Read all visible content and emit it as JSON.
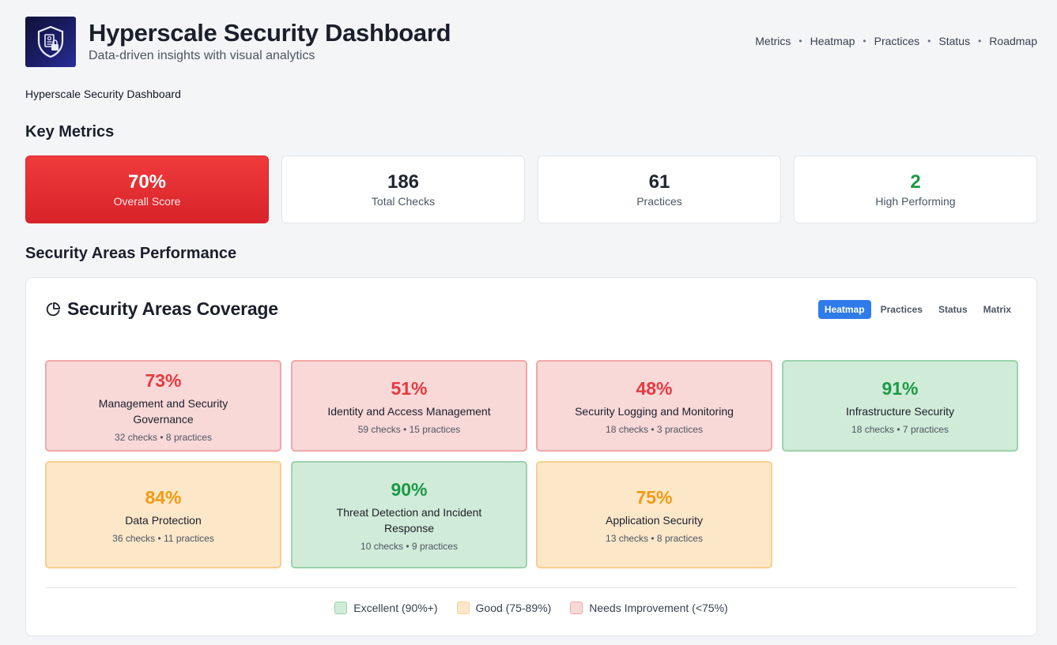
{
  "header": {
    "title": "Hyperscale Security Dashboard",
    "subtitle": "Data-driven insights with visual analytics",
    "logo_icon": "shield-lock-icon",
    "nav": [
      "Metrics",
      "Heatmap",
      "Practices",
      "Status",
      "Roadmap"
    ]
  },
  "breadcrumb": "Hyperscale Security Dashboard",
  "sections": {
    "metrics_title": "Key Metrics",
    "areas_title": "Security Areas Performance"
  },
  "metrics": [
    {
      "value": "70%",
      "label": "Overall Score"
    },
    {
      "value": "186",
      "label": "Total Checks"
    },
    {
      "value": "61",
      "label": "Practices"
    },
    {
      "value": "2",
      "label": "High Performing"
    }
  ],
  "panel": {
    "title": "Security Areas Coverage",
    "icon": "pie-chart-icon",
    "tabs": [
      "Heatmap",
      "Practices",
      "Status",
      "Matrix"
    ],
    "active_tab": "Heatmap"
  },
  "areas": [
    {
      "pct": "73%",
      "name": "Management and Security Governance",
      "meta": "32 checks • 8 practices",
      "status": "red"
    },
    {
      "pct": "51%",
      "name": "Identity and Access Management",
      "meta": "59 checks • 15 practices",
      "status": "red"
    },
    {
      "pct": "48%",
      "name": "Security Logging and Monitoring",
      "meta": "18 checks • 3 practices",
      "status": "red"
    },
    {
      "pct": "91%",
      "name": "Infrastructure Security",
      "meta": "18 checks • 7 practices",
      "status": "green"
    },
    {
      "pct": "84%",
      "name": "Data Protection",
      "meta": "36 checks • 11 practices",
      "status": "amber"
    },
    {
      "pct": "90%",
      "name": "Threat Detection and Incident Response",
      "meta": "10 checks • 9 practices",
      "status": "green"
    },
    {
      "pct": "75%",
      "name": "Application Security",
      "meta": "13 checks • 8 practices",
      "status": "amber"
    }
  ],
  "legend": [
    {
      "label": "Excellent (90%+)",
      "status": "green"
    },
    {
      "label": "Good (75-89%)",
      "status": "amber"
    },
    {
      "label": "Needs Improvement (<75%)",
      "status": "red"
    }
  ],
  "colors": {
    "primary_red": "#e53a3f",
    "green": "#1b9a45",
    "amber": "#f29a12",
    "accent_blue": "#2f7be9"
  }
}
